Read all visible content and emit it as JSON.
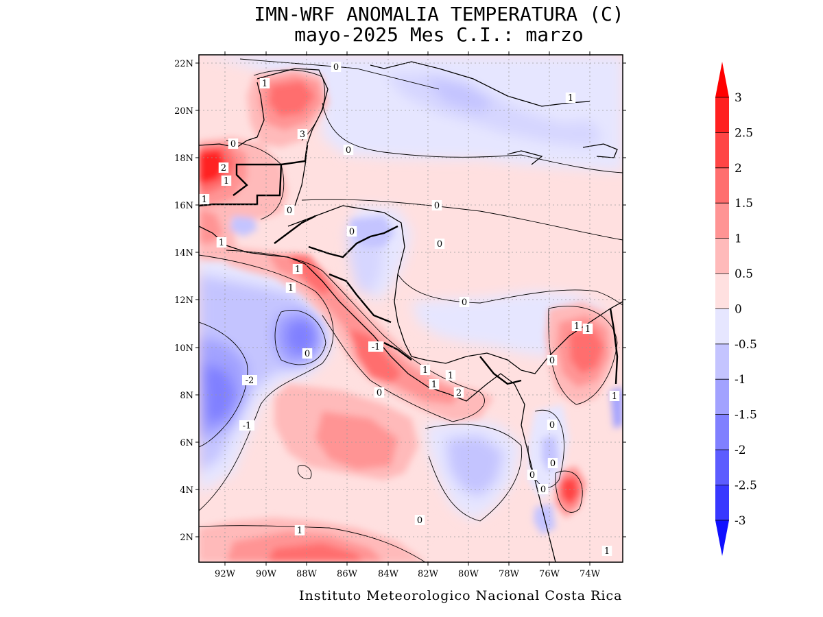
{
  "title": {
    "line1": "IMN-WRF  ANOMALIA TEMPERATURA (C)",
    "line2": "mayo-2025 Mes C.I.: marzo"
  },
  "footer": "Instituto Meteorologico Nacional Costa Rica",
  "map": {
    "lat_labels": [
      "22N",
      "20N",
      "18N",
      "16N",
      "14N",
      "12N",
      "10N",
      "8N",
      "6N",
      "4N",
      "2N"
    ],
    "lon_labels": [
      "92W",
      "90W",
      "88W",
      "86W",
      "84W",
      "82W",
      "80W",
      "78W",
      "76W",
      "74W"
    ],
    "contour_labels": [
      "0",
      "1",
      "1",
      "0",
      "0",
      "2",
      "1",
      "3",
      "1",
      "0",
      "0",
      "1",
      "0",
      "0",
      "1",
      "1",
      "0",
      "0",
      "-2",
      "-1",
      "-1",
      "1",
      "1",
      "0",
      "1",
      "1",
      "1",
      "2",
      "0",
      "1",
      "0",
      "0",
      "0",
      "0",
      "0",
      "1",
      "1"
    ]
  },
  "colorbar": {
    "labels": [
      "3",
      "2.5",
      "2",
      "1.5",
      "1",
      "0.5",
      "0",
      "-0.5",
      "-1",
      "-1.5",
      "-2",
      "-2.5",
      "-3"
    ],
    "colors": [
      "#ff2020",
      "#ff4545",
      "#ff6e6e",
      "#ff9494",
      "#ffbaba",
      "#ffe0e0",
      "#e6e6ff",
      "#c4c4ff",
      "#a2a2ff",
      "#8080ff",
      "#5c5cff",
      "#3838ff"
    ],
    "arrow_top_color": "#ff0000",
    "arrow_bottom_color": "#1010ff"
  }
}
